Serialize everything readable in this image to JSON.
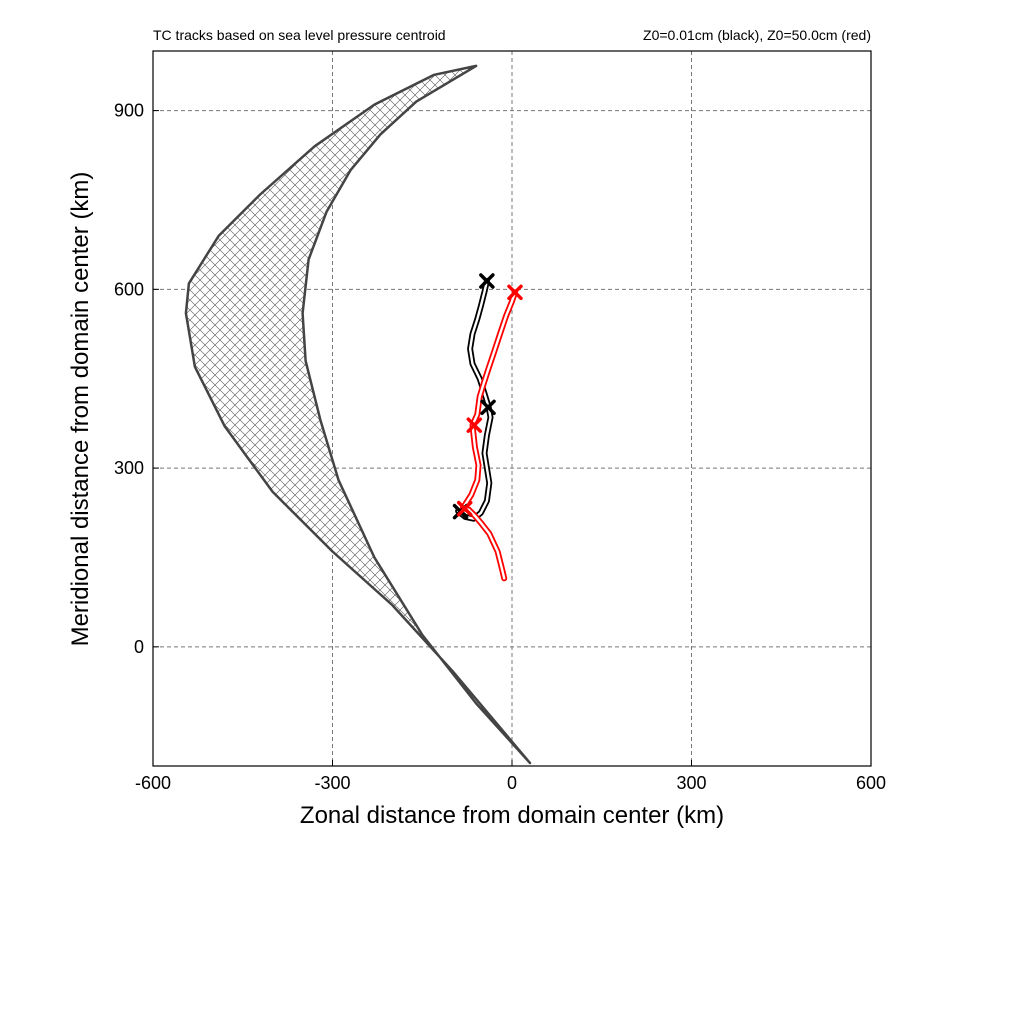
{
  "chart_data": {
    "type": "line",
    "title_left": "TC tracks based on sea level pressure centroid",
    "title_right": "Z0=0.01cm (black), Z0=50.0cm (red)",
    "xlabel": "Zonal distance from domain center (km)",
    "ylabel": "Meridional distance from domain center (km)",
    "xlim": [
      -600,
      600
    ],
    "ylim": [
      -200,
      1000
    ],
    "xticks": [
      -600,
      -300,
      0,
      300,
      600
    ],
    "yticks": [
      0,
      300,
      600,
      900
    ],
    "xtick_labels": [
      "-600",
      "-300",
      "0",
      "300",
      "600"
    ],
    "ytick_labels": [
      "0",
      "300",
      "600",
      "900"
    ],
    "grid": true,
    "series": [
      {
        "color": "#000000",
        "x": [
          -90,
          -78,
          -64,
          -52,
          -42,
          -38,
          -42,
          -46,
          -42,
          -36,
          -39,
          -46,
          -54,
          -66,
          -70,
          -66,
          -58,
          -52,
          -46,
          -42
        ],
        "y": [
          228,
          218,
          215,
          225,
          245,
          275,
          300,
          325,
          355,
          385,
          402,
          425,
          450,
          475,
          500,
          525,
          550,
          572,
          596,
          614
        ]
      },
      {
        "color": "#ff0000",
        "x": [
          -13,
          -16,
          -24,
          -38,
          -52,
          -62,
          -72,
          -82,
          -68,
          -58,
          -56,
          -62,
          -66,
          -58,
          -54,
          -48,
          -40,
          -30,
          -20,
          -10,
          0,
          5
        ],
        "y": [
          115,
          128,
          160,
          190,
          208,
          220,
          230,
          233,
          255,
          280,
          305,
          335,
          372,
          390,
          420,
          440,
          465,
          495,
          525,
          555,
          580,
          595
        ]
      }
    ],
    "markers": [
      {
        "color": "#000000",
        "x": -42,
        "y": 614
      },
      {
        "color": "#000000",
        "x": -40,
        "y": 402
      },
      {
        "color": "#000000",
        "x": -86,
        "y": 227
      },
      {
        "color": "#ff0000",
        "x": 5,
        "y": 595
      },
      {
        "color": "#ff0000",
        "x": -63,
        "y": 372
      },
      {
        "color": "#ff0000",
        "x": -79,
        "y": 232
      }
    ],
    "shaded_region": {
      "fill": "hatched",
      "outer_x": [
        -60,
        -130,
        -230,
        -330,
        -420,
        -490,
        -540,
        -545,
        -530,
        -480,
        -400,
        -300,
        -200,
        -100,
        30
      ],
      "outer_y": [
        975,
        960,
        910,
        840,
        760,
        690,
        610,
        560,
        470,
        370,
        260,
        160,
        70,
        -40,
        -195
      ],
      "inner_x": [
        30,
        -60,
        -150,
        -230,
        -290,
        -320,
        -345,
        -350,
        -340,
        -310,
        -270,
        -220,
        -160,
        -60
      ],
      "inner_y": [
        -195,
        -95,
        20,
        150,
        280,
        380,
        480,
        560,
        650,
        730,
        800,
        860,
        915,
        975
      ]
    }
  }
}
